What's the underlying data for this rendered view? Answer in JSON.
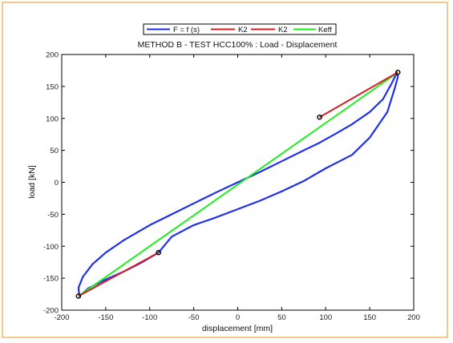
{
  "chart_data": {
    "type": "line",
    "title": "METHOD B - TEST HCC100% : Load - Displacement",
    "xlabel": "displacement [mm]",
    "ylabel": "load [kN]",
    "xlim": [
      -200,
      200
    ],
    "ylim": [
      -200,
      200
    ],
    "xticks": [
      -200,
      -150,
      -100,
      -50,
      0,
      50,
      100,
      150,
      200
    ],
    "yticks": [
      -200,
      -150,
      -100,
      -50,
      0,
      50,
      100,
      150,
      200
    ],
    "grid": false,
    "legend_position": "top",
    "series": [
      {
        "name": "F = f (s)",
        "color": "#1f2ff0",
        "x": [
          -180,
          -181,
          -176,
          -165,
          -150,
          -130,
          -100,
          -75,
          -50,
          -25,
          0,
          25,
          50,
          75,
          93,
          110,
          130,
          150,
          165,
          175,
          181,
          182,
          179,
          170,
          150,
          130,
          100,
          75,
          50,
          25,
          0,
          -25,
          -50,
          -75,
          -90,
          -110,
          -130,
          -150,
          -170,
          -180
        ],
        "y": [
          -178,
          -165,
          -148,
          -128,
          -110,
          -91,
          -67,
          -50,
          -33,
          -16,
          0,
          16,
          33,
          50,
          62,
          75,
          91,
          110,
          130,
          155,
          172,
          165,
          150,
          110,
          70,
          43,
          22,
          2,
          -14,
          -29,
          -42,
          -55,
          -67,
          -85,
          -110,
          -126,
          -140,
          -152,
          -166,
          -178
        ]
      },
      {
        "name": "K2",
        "color": "#d42020",
        "x": [
          93,
          182
        ],
        "y": [
          102,
          172
        ]
      },
      {
        "name": "K2",
        "color": "#d42020",
        "x": [
          -181,
          -90
        ],
        "y": [
          -178,
          -110
        ]
      },
      {
        "name": "Keff",
        "color": "#22ee22",
        "x": [
          -181,
          182
        ],
        "y": [
          -178,
          172
        ]
      }
    ],
    "markers": {
      "x": [
        -181,
        -90,
        93,
        182
      ],
      "y": [
        -178,
        -110,
        102,
        172
      ]
    }
  }
}
